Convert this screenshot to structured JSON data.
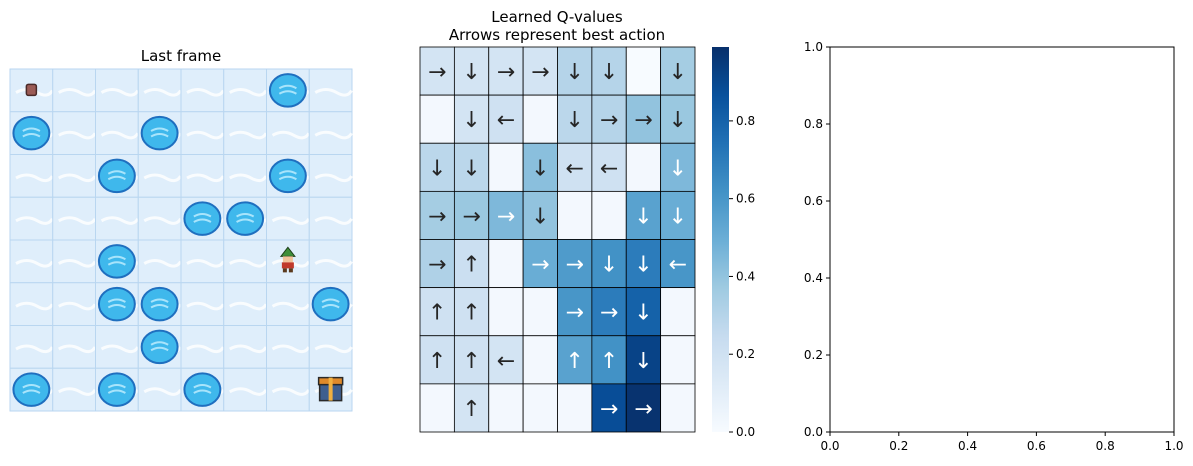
{
  "panels": {
    "frame_title": "Last frame",
    "q_title_line1": "Learned Q-values",
    "q_title_line2": "Arrows represent best action"
  },
  "chart_data": [
    {
      "type": "image",
      "title": "Last frame",
      "grid_size": 8,
      "holes": [
        [
          0,
          6
        ],
        [
          1,
          0
        ],
        [
          1,
          3
        ],
        [
          2,
          2
        ],
        [
          2,
          6
        ],
        [
          3,
          4
        ],
        [
          3,
          5
        ],
        [
          4,
          2
        ],
        [
          5,
          2
        ],
        [
          5,
          3
        ],
        [
          5,
          7
        ],
        [
          6,
          3
        ],
        [
          7,
          0
        ],
        [
          7,
          2
        ],
        [
          7,
          4
        ]
      ],
      "start": [
        0,
        0
      ],
      "agent": [
        4,
        6
      ],
      "goal": [
        7,
        7
      ],
      "colors": {
        "ice": "#dfeefb",
        "hole": "#3fb8ec",
        "hole_edge": "#1f6fbf",
        "grid": "#b9d6f0"
      }
    },
    {
      "type": "heatmap",
      "title": "Learned Q-values\nArrows represent best action",
      "colormap": "Blues",
      "vmin": 0.0,
      "vmax": 0.99,
      "values": [
        [
          0.18,
          0.18,
          0.18,
          0.18,
          0.3,
          0.3,
          0.0,
          0.35
        ],
        [
          0.02,
          0.18,
          0.2,
          0.02,
          0.28,
          0.3,
          0.4,
          0.38
        ],
        [
          0.28,
          0.28,
          0.02,
          0.42,
          0.2,
          0.2,
          0.02,
          0.45
        ],
        [
          0.35,
          0.38,
          0.45,
          0.4,
          0.02,
          0.02,
          0.55,
          0.5
        ],
        [
          0.32,
          0.22,
          0.02,
          0.5,
          0.58,
          0.62,
          0.7,
          0.6
        ],
        [
          0.2,
          0.2,
          0.02,
          0.02,
          0.6,
          0.7,
          0.8,
          0.02
        ],
        [
          0.2,
          0.2,
          0.18,
          0.02,
          0.55,
          0.62,
          0.92,
          0.02
        ],
        [
          0.02,
          0.18,
          0.02,
          0.02,
          0.02,
          0.88,
          0.98,
          0.02
        ]
      ],
      "arrows": [
        [
          "→",
          "↓",
          "→",
          "→",
          "↓",
          "↓",
          "",
          "↓"
        ],
        [
          "",
          "↓",
          "←",
          "",
          "↓",
          "→",
          "→",
          "↓"
        ],
        [
          "↓",
          "↓",
          "",
          "↓",
          "←",
          "←",
          "",
          "↓"
        ],
        [
          "→",
          "→",
          "→",
          "↓",
          "",
          "",
          "↓",
          "↓"
        ],
        [
          "→",
          "↑",
          "",
          "→",
          "→",
          "↓",
          "↓",
          "←"
        ],
        [
          "↑",
          "↑",
          "",
          "",
          "→",
          "→",
          "↓",
          ""
        ],
        [
          "↑",
          "↑",
          "←",
          "",
          "↑",
          "↑",
          "↓",
          ""
        ],
        [
          "",
          "↑",
          "",
          "",
          "",
          "→",
          "→",
          ""
        ]
      ],
      "colorbar_ticks": [
        "0.0",
        "0.2",
        "0.4",
        "0.6",
        "0.8"
      ],
      "colorbar_tick_values": [
        0.0,
        0.2,
        0.4,
        0.6,
        0.8
      ],
      "colors": {
        "light": "#f7fbff",
        "dark": "#08306b"
      }
    },
    {
      "type": "scatter",
      "title": "",
      "series": [],
      "xlim": [
        0,
        1
      ],
      "ylim": [
        0,
        1
      ],
      "xticks": [
        "0.0",
        "0.2",
        "0.4",
        "0.6",
        "0.8",
        "1.0"
      ],
      "yticks": [
        "0.0",
        "0.2",
        "0.4",
        "0.6",
        "0.8",
        "1.0"
      ]
    }
  ]
}
